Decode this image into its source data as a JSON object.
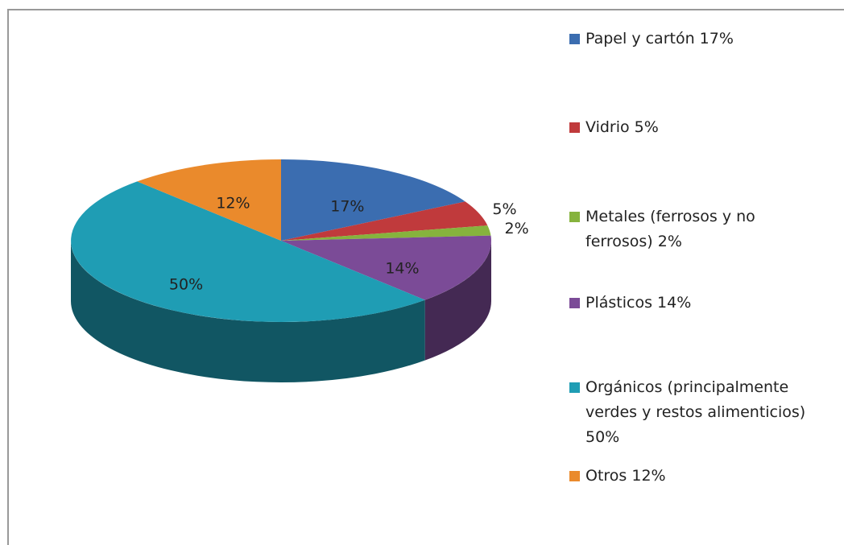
{
  "chart_data": {
    "type": "pie",
    "categories": [
      "Papel y cartón 17%",
      "Vidrio 5%",
      "Metales (ferrosos  y no ferrosos) 2%",
      "Plásticos 14%",
      "Orgánicos (principalmente verdes y restos alimenticios) 50%",
      "Otros 12%"
    ],
    "values": [
      17,
      5,
      2,
      14,
      50,
      12
    ],
    "value_labels": [
      "17%",
      "5%",
      "2%",
      "14%",
      "50%",
      "12%"
    ],
    "colors": [
      "#3b6db0",
      "#c03a3c",
      "#86b33d",
      "#7b4b97",
      "#1f9db4",
      "#ea8a2c"
    ],
    "legend": "right"
  }
}
